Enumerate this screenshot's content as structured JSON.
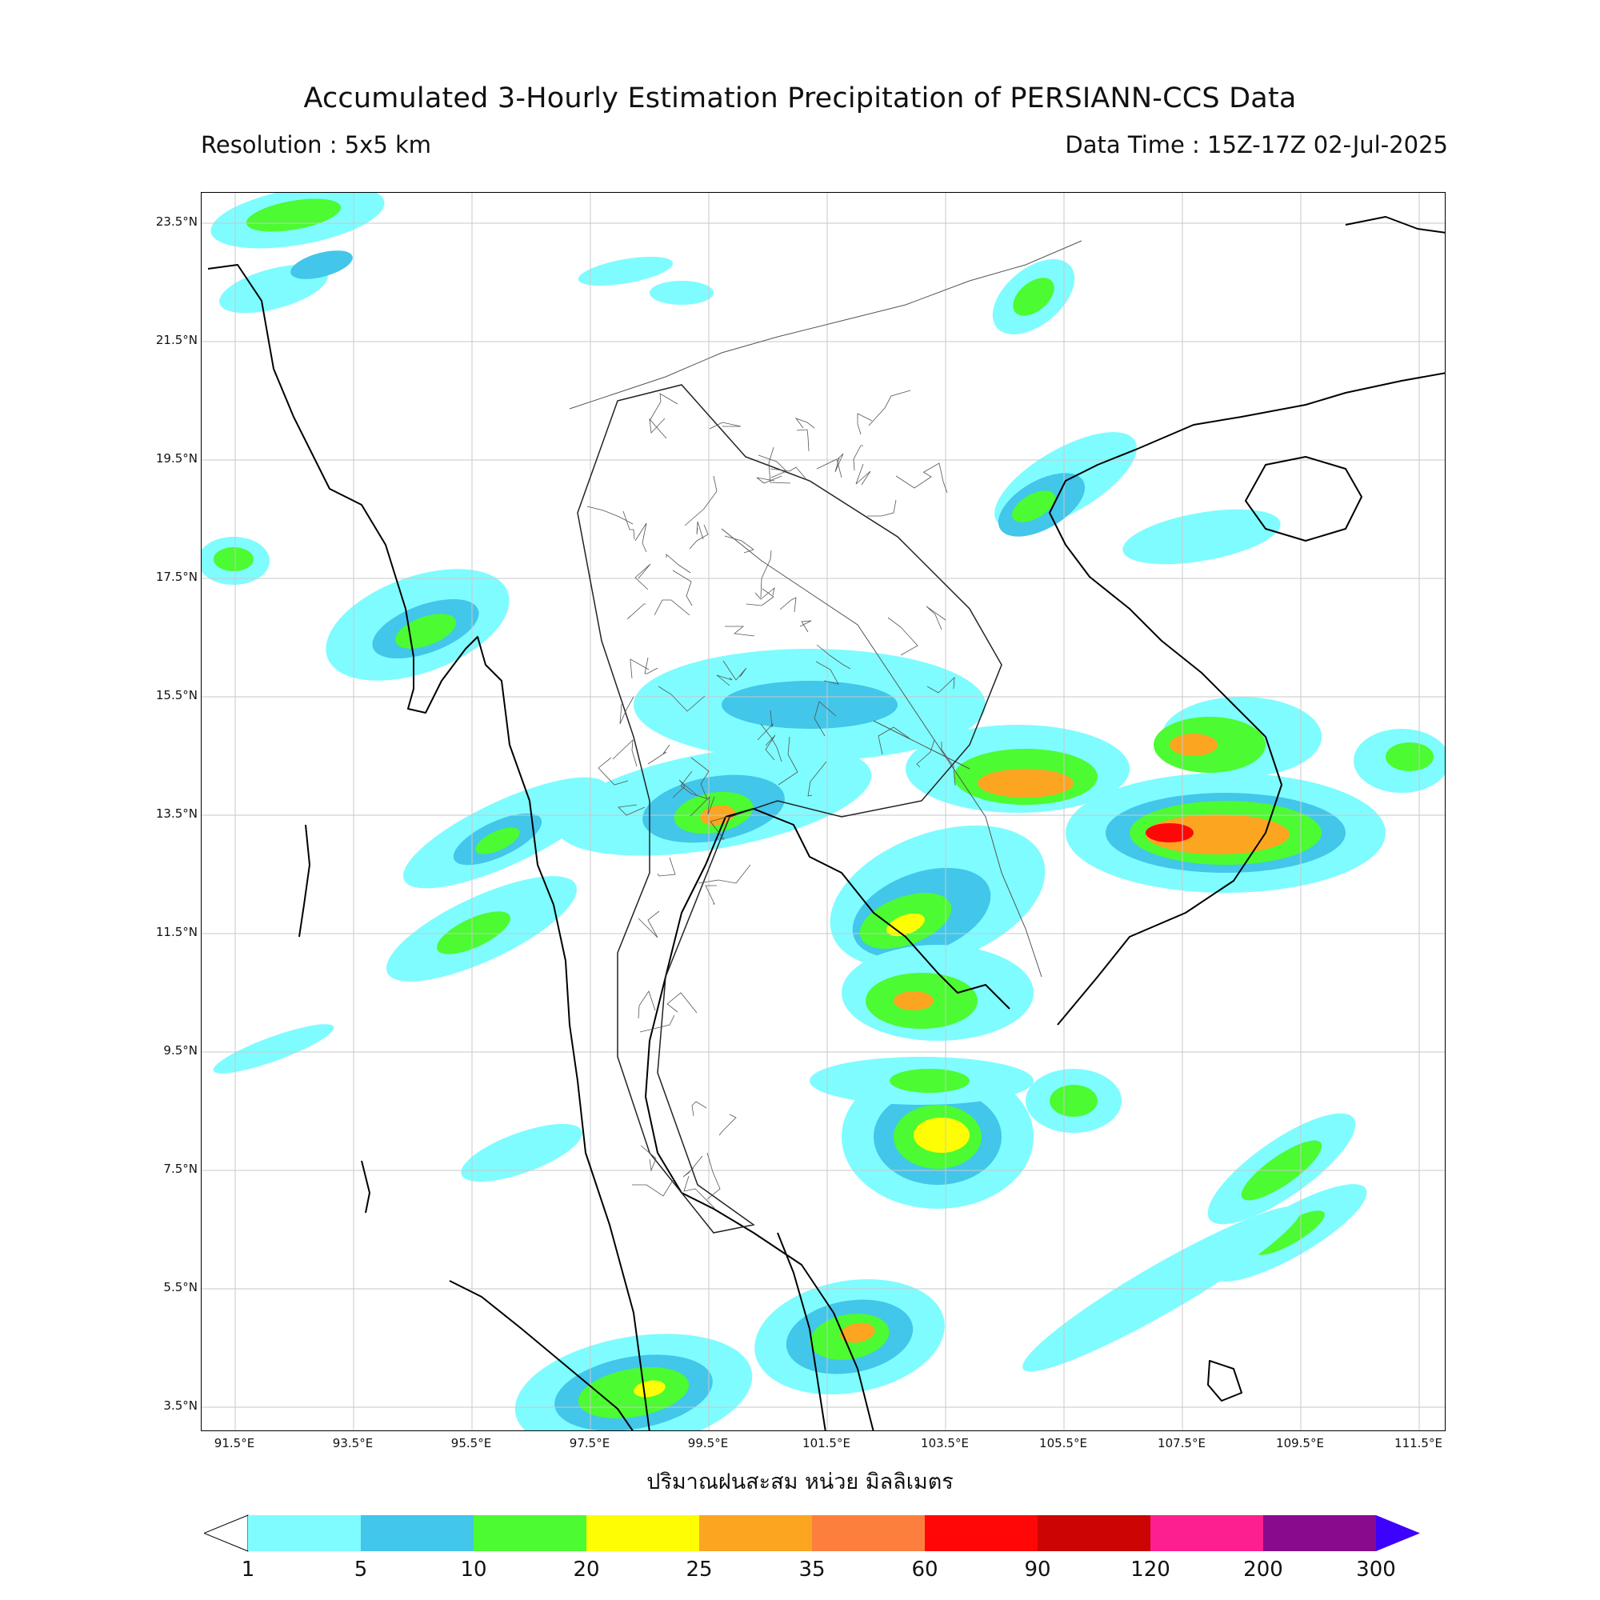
{
  "header": {
    "title": "Accumulated 3-Hourly Estimation Precipitation of PERSIANN-CCS Data",
    "resolution": "Resolution : 5x5 km",
    "data_time": "Data Time : 15Z-17Z 02-Jul-2025"
  },
  "axes": {
    "lat_ticks": [
      "23.5°N",
      "21.5°N",
      "19.5°N",
      "17.5°N",
      "15.5°N",
      "13.5°N",
      "11.5°N",
      "9.5°N",
      "7.5°N",
      "5.5°N",
      "3.5°N"
    ],
    "lon_ticks": [
      "91.5°E",
      "93.5°E",
      "95.5°E",
      "97.5°E",
      "99.5°E",
      "101.5°E",
      "103.5°E",
      "105.5°E",
      "107.5°E",
      "109.5°E",
      "111.5°E"
    ],
    "x_caption": "ปริมาณฝนสะสม หน่วย มิลลิเมตร"
  },
  "legend": {
    "levels": [
      "1",
      "5",
      "10",
      "20",
      "25",
      "35",
      "60",
      "90",
      "120",
      "200",
      "300"
    ],
    "colors": [
      "#7ffcff",
      "#42c6ea",
      "#4cfb31",
      "#fffd04",
      "#fba521",
      "#fc7f3e",
      "#ff0707",
      "#cc0504",
      "#fd1e8f",
      "#8a0a8d",
      "#3d02fb"
    ],
    "open_low_color": "#ffffff",
    "open_high_color": "#3d02fb"
  },
  "map": {
    "precip_colors": {
      "light": "#7ffcff",
      "moderate": "#42c6ea",
      "heavy": "#4cfb31",
      "intense": "#fffd04",
      "orange": "#fba521",
      "orangered": "#fc7f3e",
      "red": "#ff0707"
    }
  }
}
